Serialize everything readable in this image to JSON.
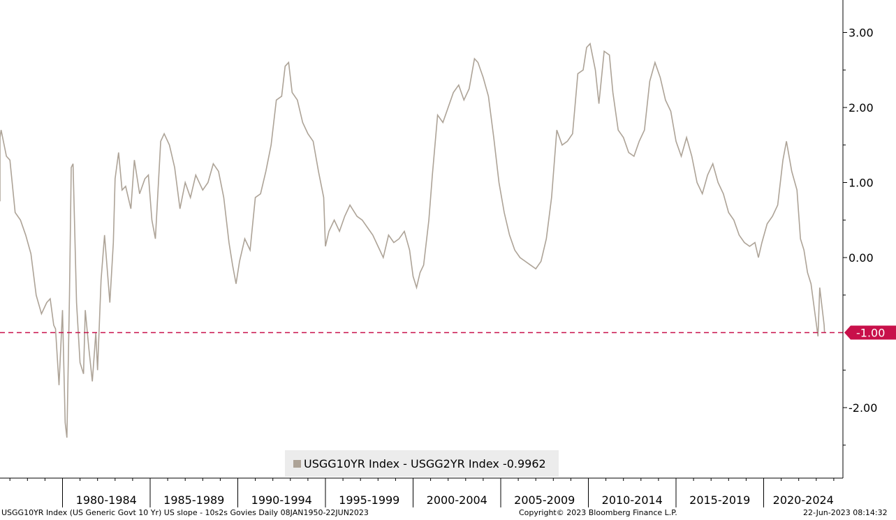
{
  "colors": {
    "series": "#ada397",
    "reference": "#c8104a",
    "legend_bg": "#ececec",
    "axis": "#000000"
  },
  "legend": {
    "label": "USGG10YR Index - USGG2YR Index -0.9962"
  },
  "footer": {
    "left": "USGG10YR Index (US Generic Govt 10 Yr) US slope - 10s2s Govies  Daily 08JAN1950-22JUN2023",
    "center": "Copyright© 2023 Bloomberg Finance L.P.",
    "right": "22-Jun-2023 08:14:32"
  },
  "chart_data": {
    "type": "line",
    "title": "",
    "xlabel": "",
    "ylabel": "",
    "ylim": [
      -2.8,
      3.4
    ],
    "y_ticks": [
      {
        "value": 3.0,
        "label": "3.00"
      },
      {
        "value": 2.0,
        "label": "2.00"
      },
      {
        "value": 1.0,
        "label": "1.00"
      },
      {
        "value": 0.0,
        "label": "0.00"
      },
      {
        "value": -2.0,
        "label": "-2.00"
      }
    ],
    "x_range": [
      1976.0,
      2024.0
    ],
    "x_categories": [
      {
        "label": "1980-1984",
        "start": 1980,
        "end": 1985
      },
      {
        "label": "1985-1989",
        "start": 1985,
        "end": 1990
      },
      {
        "label": "1990-1994",
        "start": 1990,
        "end": 1995
      },
      {
        "label": "1995-1999",
        "start": 1995,
        "end": 2000
      },
      {
        "label": "2000-2004",
        "start": 2000,
        "end": 2005
      },
      {
        "label": "2005-2009",
        "start": 2005,
        "end": 2010
      },
      {
        "label": "2010-2014",
        "start": 2010,
        "end": 2015
      },
      {
        "label": "2015-2019",
        "start": 2015,
        "end": 2020
      },
      {
        "label": "2020-2024",
        "start": 2020,
        "end": 2025
      }
    ],
    "reference_line": {
      "value": -1.0,
      "label": "-1.00"
    },
    "grid": false,
    "legend_position": "bottom-center",
    "series": [
      {
        "name": "USGG10YR Index - USGG2YR Index",
        "last_value": -0.9962,
        "points": [
          [
            1976.0,
            0.75
          ],
          [
            1976.3,
            1.6
          ],
          [
            1976.5,
            1.7
          ],
          [
            1976.8,
            1.35
          ],
          [
            1977.0,
            1.3
          ],
          [
            1977.3,
            0.6
          ],
          [
            1977.6,
            0.5
          ],
          [
            1977.9,
            0.3
          ],
          [
            1978.2,
            0.05
          ],
          [
            1978.5,
            -0.5
          ],
          [
            1978.8,
            -0.75
          ],
          [
            1979.1,
            -0.6
          ],
          [
            1979.3,
            -0.55
          ],
          [
            1979.5,
            -0.9
          ],
          [
            1979.6,
            -0.95
          ],
          [
            1979.8,
            -1.7
          ],
          [
            1980.0,
            -0.7
          ],
          [
            1980.15,
            -2.2
          ],
          [
            1980.25,
            -2.4
          ],
          [
            1980.4,
            -0.5
          ],
          [
            1980.5,
            1.2
          ],
          [
            1980.6,
            1.25
          ],
          [
            1980.8,
            -0.6
          ],
          [
            1981.0,
            -1.4
          ],
          [
            1981.2,
            -1.55
          ],
          [
            1981.3,
            -0.7
          ],
          [
            1981.5,
            -1.2
          ],
          [
            1981.7,
            -1.65
          ],
          [
            1981.9,
            -1.0
          ],
          [
            1982.0,
            -1.5
          ],
          [
            1982.2,
            -0.3
          ],
          [
            1982.4,
            0.3
          ],
          [
            1982.7,
            -0.6
          ],
          [
            1982.9,
            0.2
          ],
          [
            1983.0,
            1.05
          ],
          [
            1983.2,
            1.4
          ],
          [
            1983.4,
            0.9
          ],
          [
            1983.6,
            0.95
          ],
          [
            1983.9,
            0.65
          ],
          [
            1984.1,
            1.3
          ],
          [
            1984.4,
            0.85
          ],
          [
            1984.7,
            1.05
          ],
          [
            1984.9,
            1.1
          ],
          [
            1985.1,
            0.5
          ],
          [
            1985.3,
            0.25
          ],
          [
            1985.6,
            1.55
          ],
          [
            1985.8,
            1.65
          ],
          [
            1986.1,
            1.5
          ],
          [
            1986.4,
            1.2
          ],
          [
            1986.7,
            0.65
          ],
          [
            1987.0,
            1.0
          ],
          [
            1987.3,
            0.8
          ],
          [
            1987.6,
            1.1
          ],
          [
            1988.0,
            0.9
          ],
          [
            1988.3,
            1.0
          ],
          [
            1988.6,
            1.25
          ],
          [
            1988.9,
            1.15
          ],
          [
            1989.2,
            0.8
          ],
          [
            1989.5,
            0.2
          ],
          [
            1989.7,
            -0.1
          ],
          [
            1989.9,
            -0.35
          ],
          [
            1990.1,
            -0.05
          ],
          [
            1990.4,
            0.25
          ],
          [
            1990.7,
            0.1
          ],
          [
            1991.0,
            0.8
          ],
          [
            1991.3,
            0.85
          ],
          [
            1991.6,
            1.15
          ],
          [
            1991.9,
            1.5
          ],
          [
            1992.2,
            2.1
          ],
          [
            1992.5,
            2.15
          ],
          [
            1992.7,
            2.55
          ],
          [
            1992.9,
            2.6
          ],
          [
            1993.1,
            2.2
          ],
          [
            1993.4,
            2.1
          ],
          [
            1993.7,
            1.8
          ],
          [
            1994.0,
            1.65
          ],
          [
            1994.3,
            1.55
          ],
          [
            1994.6,
            1.15
          ],
          [
            1994.9,
            0.8
          ],
          [
            1995.0,
            0.15
          ],
          [
            1995.2,
            0.35
          ],
          [
            1995.5,
            0.5
          ],
          [
            1995.8,
            0.35
          ],
          [
            1996.1,
            0.55
          ],
          [
            1996.4,
            0.7
          ],
          [
            1996.8,
            0.55
          ],
          [
            1997.1,
            0.5
          ],
          [
            1997.4,
            0.4
          ],
          [
            1997.7,
            0.3
          ],
          [
            1998.0,
            0.15
          ],
          [
            1998.3,
            0.0
          ],
          [
            1998.6,
            0.3
          ],
          [
            1998.9,
            0.2
          ],
          [
            1999.2,
            0.25
          ],
          [
            1999.5,
            0.35
          ],
          [
            1999.8,
            0.1
          ],
          [
            2000.0,
            -0.25
          ],
          [
            2000.2,
            -0.4
          ],
          [
            2000.4,
            -0.2
          ],
          [
            2000.6,
            -0.1
          ],
          [
            2000.9,
            0.5
          ],
          [
            2001.1,
            1.1
          ],
          [
            2001.4,
            1.9
          ],
          [
            2001.7,
            1.8
          ],
          [
            2002.0,
            2.0
          ],
          [
            2002.3,
            2.2
          ],
          [
            2002.6,
            2.3
          ],
          [
            2002.9,
            2.1
          ],
          [
            2003.2,
            2.25
          ],
          [
            2003.5,
            2.65
          ],
          [
            2003.7,
            2.6
          ],
          [
            2004.0,
            2.4
          ],
          [
            2004.3,
            2.15
          ],
          [
            2004.6,
            1.6
          ],
          [
            2004.9,
            1.0
          ],
          [
            2005.2,
            0.6
          ],
          [
            2005.5,
            0.3
          ],
          [
            2005.8,
            0.1
          ],
          [
            2006.1,
            0.0
          ],
          [
            2006.4,
            -0.05
          ],
          [
            2006.7,
            -0.1
          ],
          [
            2007.0,
            -0.15
          ],
          [
            2007.3,
            -0.05
          ],
          [
            2007.6,
            0.25
          ],
          [
            2007.9,
            0.8
          ],
          [
            2008.2,
            1.7
          ],
          [
            2008.5,
            1.5
          ],
          [
            2008.8,
            1.55
          ],
          [
            2009.1,
            1.65
          ],
          [
            2009.4,
            2.45
          ],
          [
            2009.7,
            2.5
          ],
          [
            2009.9,
            2.8
          ],
          [
            2010.1,
            2.85
          ],
          [
            2010.4,
            2.5
          ],
          [
            2010.6,
            2.05
          ],
          [
            2010.9,
            2.75
          ],
          [
            2011.2,
            2.7
          ],
          [
            2011.4,
            2.2
          ],
          [
            2011.7,
            1.7
          ],
          [
            2012.0,
            1.6
          ],
          [
            2012.3,
            1.4
          ],
          [
            2012.6,
            1.35
          ],
          [
            2012.9,
            1.55
          ],
          [
            2013.2,
            1.7
          ],
          [
            2013.5,
            2.35
          ],
          [
            2013.8,
            2.6
          ],
          [
            2014.1,
            2.4
          ],
          [
            2014.4,
            2.1
          ],
          [
            2014.7,
            1.95
          ],
          [
            2015.0,
            1.55
          ],
          [
            2015.3,
            1.35
          ],
          [
            2015.6,
            1.6
          ],
          [
            2015.9,
            1.35
          ],
          [
            2016.2,
            1.0
          ],
          [
            2016.5,
            0.85
          ],
          [
            2016.8,
            1.1
          ],
          [
            2017.1,
            1.25
          ],
          [
            2017.4,
            1.0
          ],
          [
            2017.7,
            0.85
          ],
          [
            2018.0,
            0.6
          ],
          [
            2018.3,
            0.5
          ],
          [
            2018.6,
            0.3
          ],
          [
            2018.9,
            0.2
          ],
          [
            2019.2,
            0.15
          ],
          [
            2019.5,
            0.2
          ],
          [
            2019.7,
            0.0
          ],
          [
            2019.9,
            0.2
          ],
          [
            2020.2,
            0.45
          ],
          [
            2020.5,
            0.55
          ],
          [
            2020.8,
            0.7
          ],
          [
            2021.1,
            1.3
          ],
          [
            2021.3,
            1.55
          ],
          [
            2021.6,
            1.15
          ],
          [
            2021.9,
            0.9
          ],
          [
            2022.1,
            0.25
          ],
          [
            2022.3,
            0.1
          ],
          [
            2022.5,
            -0.2
          ],
          [
            2022.7,
            -0.35
          ],
          [
            2022.9,
            -0.7
          ],
          [
            2023.1,
            -1.05
          ],
          [
            2023.2,
            -0.4
          ],
          [
            2023.3,
            -0.6
          ],
          [
            2023.45,
            -0.9
          ],
          [
            2023.47,
            -0.9962
          ]
        ]
      }
    ]
  }
}
